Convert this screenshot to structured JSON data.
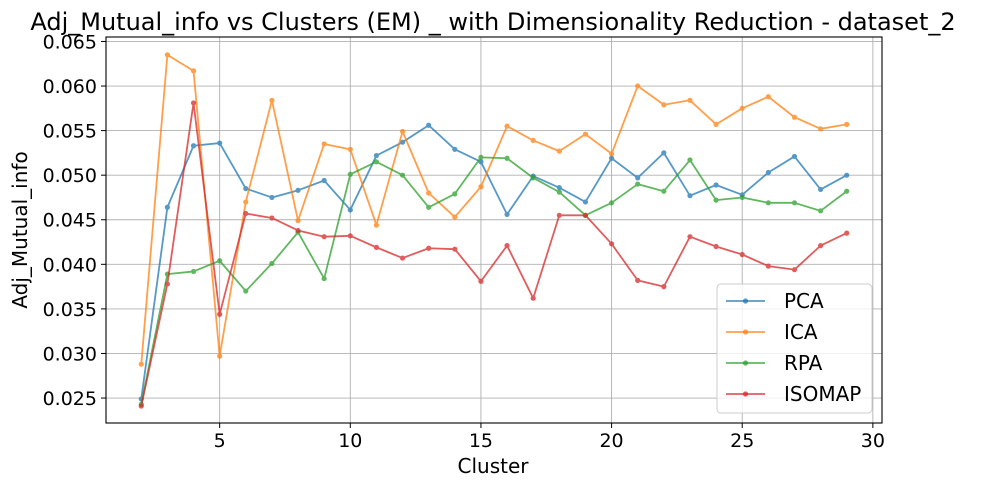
{
  "chart_data": {
    "type": "line",
    "title": "Adj_Mutual_info vs Clusters (EM) _ with Dimensionality Reduction - dataset_2",
    "xlabel": "Cluster",
    "ylabel": "Adj_Mutual_info",
    "xlim": [
      0.65,
      30.35
    ],
    "ylim": [
      0.0222,
      0.0655
    ],
    "xticks": [
      5,
      10,
      15,
      20,
      25,
      30
    ],
    "xtick_labels": [
      "5",
      "10",
      "15",
      "20",
      "25",
      "30"
    ],
    "yticks": [
      0.025,
      0.03,
      0.035,
      0.04,
      0.045,
      0.05,
      0.055,
      0.06,
      0.065
    ],
    "ytick_labels": [
      "0.025",
      "0.030",
      "0.035",
      "0.040",
      "0.045",
      "0.050",
      "0.055",
      "0.060",
      "0.065"
    ],
    "grid": true,
    "legend_position": "lower right",
    "x": [
      2,
      3,
      4,
      5,
      6,
      7,
      8,
      9,
      10,
      11,
      12,
      13,
      14,
      15,
      16,
      17,
      18,
      19,
      20,
      21,
      22,
      23,
      24,
      25,
      26,
      27,
      28,
      29
    ],
    "series": [
      {
        "name": "PCA",
        "color": "#1f77b4",
        "values": [
          0.0249,
          0.0464,
          0.0533,
          0.0536,
          0.0485,
          0.0475,
          0.0483,
          0.0494,
          0.0461,
          0.0522,
          0.0537,
          0.0556,
          0.0529,
          0.0515,
          0.0456,
          0.0499,
          0.0486,
          0.047,
          0.0519,
          0.0497,
          0.0525,
          0.0477,
          0.0489,
          0.0478,
          0.0503,
          0.0521,
          0.0484,
          0.05
        ]
      },
      {
        "name": "ICA",
        "color": "#ff7f0e",
        "values": [
          0.0288,
          0.0635,
          0.0617,
          0.0297,
          0.047,
          0.0584,
          0.0449,
          0.0535,
          0.0529,
          0.0444,
          0.0549,
          0.048,
          0.0453,
          0.0487,
          0.0555,
          0.0539,
          0.0527,
          0.0546,
          0.0524,
          0.06,
          0.0579,
          0.0584,
          0.0557,
          0.0575,
          0.0588,
          0.0565,
          0.0552,
          0.0557
        ]
      },
      {
        "name": "RPA",
        "color": "#2ca02c",
        "values": [
          0.0243,
          0.0389,
          0.0392,
          0.0404,
          0.037,
          0.0401,
          0.0436,
          0.0384,
          0.0501,
          0.0515,
          0.05,
          0.0464,
          0.0479,
          0.052,
          0.0519,
          0.0497,
          0.0481,
          0.0455,
          0.0469,
          0.049,
          0.0482,
          0.0517,
          0.0472,
          0.0475,
          0.0469,
          0.0469,
          0.046,
          0.0482
        ]
      },
      {
        "name": "ISOMAP",
        "color": "#d62728",
        "values": [
          0.0241,
          0.0378,
          0.0581,
          0.0344,
          0.0457,
          0.0452,
          0.0438,
          0.0431,
          0.0432,
          0.0419,
          0.0407,
          0.0418,
          0.0417,
          0.0381,
          0.0421,
          0.0362,
          0.0455,
          0.0455,
          0.0423,
          0.0382,
          0.0375,
          0.0431,
          0.042,
          0.0411,
          0.0398,
          0.0394,
          0.0421,
          0.0435
        ]
      }
    ]
  }
}
